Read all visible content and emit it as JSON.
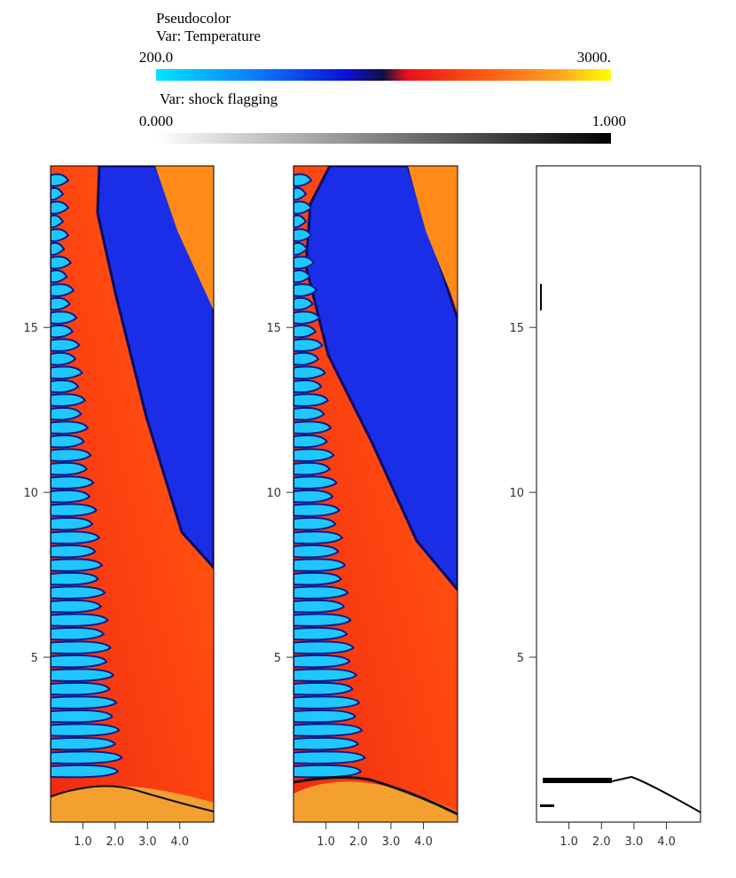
{
  "legends": [
    {
      "title": "Pseudocolor",
      "var": "Var: Temperature",
      "min": {
        "value": 200,
        "label": "200.0"
      },
      "max": {
        "value": 3000,
        "label": "3000."
      }
    },
    {
      "var": "Var: shock flagging",
      "min": {
        "value": 0,
        "label": "0.000"
      },
      "max": {
        "value": 1,
        "label": "1.000"
      }
    }
  ],
  "panels": [
    {
      "xlim": [
        0,
        5.05
      ],
      "ylim": [
        0,
        19.9
      ],
      "xticks": [
        {
          "value": 1,
          "label": "1.0"
        },
        {
          "value": 2,
          "label": "2.0"
        },
        {
          "value": 3,
          "label": "3.0"
        },
        {
          "value": 4,
          "label": "4.0"
        }
      ],
      "yticks": [
        5,
        10,
        15
      ]
    },
    {
      "xlim": [
        0,
        5.05
      ],
      "ylim": [
        0,
        19.9
      ],
      "xticks": [
        {
          "value": 1,
          "label": "1.0"
        },
        {
          "value": 2,
          "label": "2.0"
        },
        {
          "value": 3,
          "label": "3.0"
        },
        {
          "value": 4,
          "label": "4.0"
        }
      ],
      "yticks": [
        5,
        10,
        15
      ]
    },
    {
      "xlim": [
        0,
        5.05
      ],
      "ylim": [
        0,
        19.9
      ],
      "xticks": [
        {
          "value": 1,
          "label": "1.0"
        },
        {
          "value": 2,
          "label": "2.0"
        },
        {
          "value": 3,
          "label": "3.0"
        },
        {
          "value": 4,
          "label": "4.0"
        }
      ],
      "yticks": [
        5,
        10,
        15
      ]
    }
  ]
}
